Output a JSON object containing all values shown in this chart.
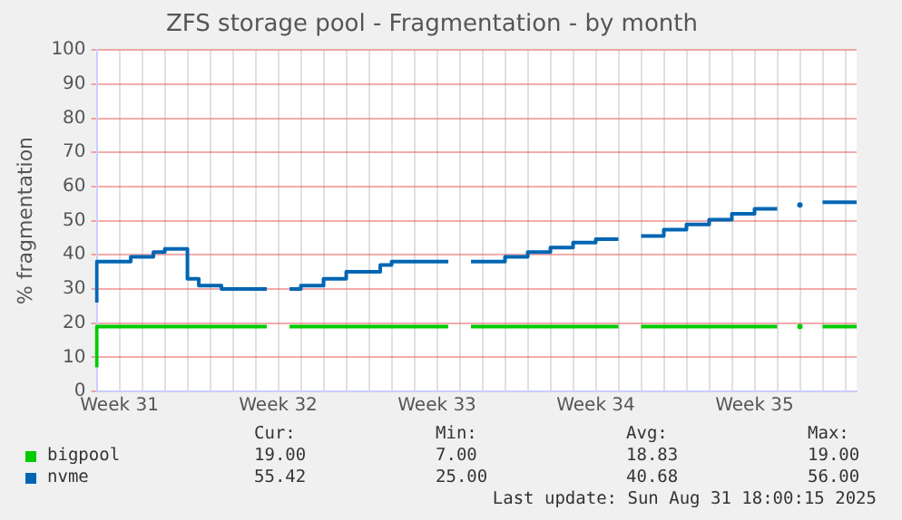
{
  "chart_data": {
    "type": "step",
    "title": "ZFS storage pool - Fragmentation - by month",
    "ylabel": "% fragmentation",
    "categories": [
      null,
      null,
      "Week 31",
      null,
      null,
      null,
      null,
      null,
      null,
      null,
      null,
      null,
      null,
      null,
      null,
      null,
      "Week 32",
      null,
      null,
      null,
      null,
      null,
      null,
      null,
      null,
      null,
      null,
      null,
      null,
      null,
      "Week 33",
      null,
      null,
      null,
      null,
      null,
      null,
      null,
      null,
      null,
      null,
      null,
      null,
      null,
      "Week 34",
      null,
      null,
      null,
      null,
      null,
      null,
      null,
      null,
      null,
      null,
      null,
      null,
      null,
      "Week 35",
      null,
      null,
      null,
      null,
      null,
      null,
      null,
      null,
      null
    ],
    "ylim": [
      0,
      100
    ],
    "yticks": [
      0,
      10,
      20,
      30,
      40,
      50,
      60,
      70,
      80,
      90,
      100
    ],
    "grid": true,
    "legend": "bottom",
    "series": [
      {
        "name": "bigpool",
        "color": "#00cc00",
        "values": [
          7,
          19,
          19,
          19,
          19,
          19,
          19,
          19,
          19,
          19,
          19,
          19,
          19,
          19,
          19,
          19,
          null,
          19,
          19,
          19,
          19,
          19,
          19,
          19,
          19,
          19,
          19,
          19,
          19,
          19,
          19,
          19,
          null,
          19,
          19,
          19,
          19,
          19,
          19,
          19,
          19,
          19,
          19,
          19,
          19,
          19,
          19,
          null,
          19,
          19,
          19,
          19,
          19,
          19,
          19,
          19,
          19,
          19,
          19,
          19,
          19,
          null,
          19,
          null,
          19,
          19,
          19,
          19
        ]
      },
      {
        "name": "nvme",
        "color": "#0066b3",
        "values": [
          26,
          38,
          38,
          38,
          39.4,
          39.4,
          40.8,
          41.7,
          41.7,
          33,
          31,
          31,
          30,
          30,
          30,
          30,
          null,
          30,
          30,
          31,
          31,
          33,
          33,
          35,
          35,
          35,
          37,
          38,
          38,
          38,
          38,
          38,
          null,
          38,
          38,
          38,
          38,
          39.4,
          39.4,
          40.8,
          40.8,
          42.1,
          42.1,
          43.6,
          43.6,
          44.6,
          44.6,
          null,
          45.5,
          45.5,
          45.5,
          47.4,
          47.4,
          48.9,
          48.9,
          50.3,
          50.3,
          52,
          52,
          53.5,
          53.5,
          null,
          54.6,
          null,
          55.4,
          55.4,
          55.4,
          55.4
        ]
      }
    ],
    "annotations": [
      "Cur:",
      "Min:",
      "Avg:",
      "Max:",
      "19.00",
      "7.00",
      "18.83",
      "19.00",
      "55.42",
      "25.00",
      "40.68",
      "56.00",
      "Last update: Sun Aug 31 18:00:15 2025"
    ]
  }
}
